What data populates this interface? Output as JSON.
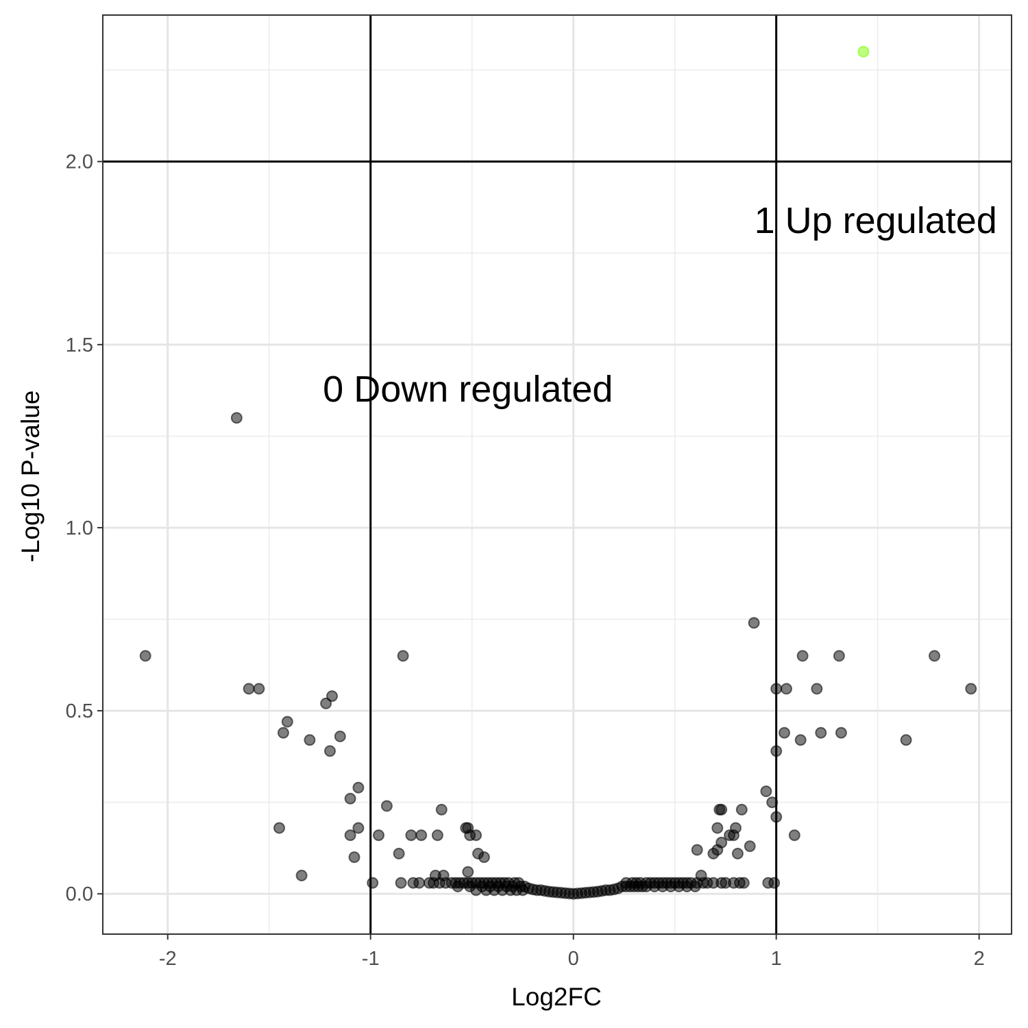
{
  "chart_data": {
    "type": "scatter",
    "xlabel": "Log2FC",
    "ylabel": "-Log10 P-value",
    "xlim": [
      -2.32,
      2.16
    ],
    "ylim": [
      -0.11,
      2.4
    ],
    "x_ticks": [
      -2,
      -1,
      0,
      1,
      2
    ],
    "x_tick_labels": [
      "-2",
      "-1",
      "0",
      "1",
      "2"
    ],
    "y_ticks": [
      0.0,
      0.5,
      1.0,
      1.5,
      2.0
    ],
    "y_tick_labels": [
      "0.0",
      "0.5",
      "1.0",
      "1.5",
      "2.0"
    ],
    "grid": true,
    "thresholds": {
      "log2fc": [
        -1,
        1
      ],
      "neg_log10_p": 2.0
    },
    "annotations": [
      {
        "text": "0 Down regulated",
        "x": -0.52,
        "y": 1.38
      },
      {
        "text": "1 Up regulated",
        "x": 1.49,
        "y": 1.84
      }
    ],
    "colors": {
      "not_significant": "#000000",
      "up": "#7cfc00",
      "threshold_line": "#000000"
    },
    "series": [
      {
        "group": "not_significant",
        "points": [
          [
            -2.11,
            0.65
          ],
          [
            -1.66,
            1.3
          ],
          [
            -1.6,
            0.56
          ],
          [
            -1.55,
            0.56
          ],
          [
            -1.45,
            0.18
          ],
          [
            -1.41,
            0.47
          ],
          [
            -1.43,
            0.44
          ],
          [
            -1.34,
            0.05
          ],
          [
            -1.3,
            0.42
          ],
          [
            -1.22,
            0.52
          ],
          [
            -1.19,
            0.54
          ],
          [
            -1.2,
            0.39
          ],
          [
            -1.15,
            0.43
          ],
          [
            -1.1,
            0.26
          ],
          [
            -1.06,
            0.29
          ],
          [
            -1.1,
            0.16
          ],
          [
            -1.08,
            0.1
          ],
          [
            -1.06,
            0.18
          ],
          [
            -0.99,
            0.03
          ],
          [
            -0.92,
            0.24
          ],
          [
            -0.96,
            0.16
          ],
          [
            -0.86,
            0.11
          ],
          [
            -0.85,
            0.03
          ],
          [
            -0.84,
            0.65
          ],
          [
            -0.8,
            0.16
          ],
          [
            -0.79,
            0.03
          ],
          [
            -0.75,
            0.16
          ],
          [
            -0.76,
            0.03
          ],
          [
            -0.67,
            0.16
          ],
          [
            -0.65,
            0.23
          ],
          [
            -0.53,
            0.18
          ],
          [
            -0.52,
            0.18
          ],
          [
            -0.51,
            0.16
          ],
          [
            -0.48,
            0.16
          ],
          [
            -0.47,
            0.11
          ],
          [
            -0.44,
            0.1
          ],
          [
            -0.52,
            0.06
          ],
          [
            -0.68,
            0.05
          ],
          [
            -0.64,
            0.05
          ],
          [
            -0.71,
            0.03
          ],
          [
            -0.69,
            0.03
          ],
          [
            -0.66,
            0.03
          ],
          [
            -0.63,
            0.03
          ],
          [
            -0.6,
            0.03
          ],
          [
            -0.58,
            0.03
          ],
          [
            -0.56,
            0.03
          ],
          [
            -0.54,
            0.03
          ],
          [
            -0.52,
            0.03
          ],
          [
            -0.5,
            0.03
          ],
          [
            -0.48,
            0.03
          ],
          [
            -0.46,
            0.03
          ],
          [
            -0.44,
            0.03
          ],
          [
            -0.42,
            0.03
          ],
          [
            -0.4,
            0.03
          ],
          [
            -0.38,
            0.03
          ],
          [
            -0.36,
            0.03
          ],
          [
            -0.34,
            0.03
          ],
          [
            -0.32,
            0.03
          ],
          [
            -0.29,
            0.03
          ],
          [
            -0.27,
            0.03
          ],
          [
            -0.57,
            0.02
          ],
          [
            -0.51,
            0.02
          ],
          [
            -0.45,
            0.02
          ],
          [
            -0.41,
            0.02
          ],
          [
            -0.37,
            0.02
          ],
          [
            -0.33,
            0.02
          ],
          [
            -0.3,
            0.02
          ],
          [
            -0.26,
            0.02
          ],
          [
            -0.24,
            0.02
          ],
          [
            -0.48,
            0.01
          ],
          [
            -0.43,
            0.01
          ],
          [
            -0.39,
            0.01
          ],
          [
            -0.35,
            0.01
          ],
          [
            -0.31,
            0.01
          ],
          [
            -0.28,
            0.01
          ],
          [
            -0.25,
            0.01
          ],
          [
            -0.22,
            0.015
          ],
          [
            -0.2,
            0.012
          ],
          [
            -0.18,
            0.01
          ],
          [
            -0.16,
            0.01
          ],
          [
            -0.14,
            0.008
          ],
          [
            -0.12,
            0.006
          ],
          [
            -0.1,
            0.005
          ],
          [
            -0.08,
            0.004
          ],
          [
            -0.06,
            0.003
          ],
          [
            -0.04,
            0.002
          ],
          [
            -0.02,
            0.001
          ],
          [
            0.0,
            0.0
          ],
          [
            0.02,
            0.001
          ],
          [
            0.04,
            0.002
          ],
          [
            0.06,
            0.003
          ],
          [
            0.08,
            0.004
          ],
          [
            0.1,
            0.005
          ],
          [
            0.12,
            0.006
          ],
          [
            0.14,
            0.008
          ],
          [
            0.16,
            0.01
          ],
          [
            0.18,
            0.01
          ],
          [
            0.2,
            0.012
          ],
          [
            0.22,
            0.015
          ],
          [
            0.24,
            0.02
          ],
          [
            0.26,
            0.02
          ],
          [
            0.28,
            0.02
          ],
          [
            0.3,
            0.02
          ],
          [
            0.32,
            0.02
          ],
          [
            0.34,
            0.02
          ],
          [
            0.36,
            0.02
          ],
          [
            0.4,
            0.02
          ],
          [
            0.44,
            0.02
          ],
          [
            0.48,
            0.02
          ],
          [
            0.52,
            0.02
          ],
          [
            0.56,
            0.02
          ],
          [
            0.6,
            0.02
          ],
          [
            0.26,
            0.03
          ],
          [
            0.29,
            0.03
          ],
          [
            0.31,
            0.03
          ],
          [
            0.33,
            0.03
          ],
          [
            0.36,
            0.03
          ],
          [
            0.38,
            0.03
          ],
          [
            0.4,
            0.03
          ],
          [
            0.42,
            0.03
          ],
          [
            0.44,
            0.03
          ],
          [
            0.46,
            0.03
          ],
          [
            0.48,
            0.03
          ],
          [
            0.5,
            0.03
          ],
          [
            0.52,
            0.03
          ],
          [
            0.54,
            0.03
          ],
          [
            0.56,
            0.03
          ],
          [
            0.58,
            0.03
          ],
          [
            0.61,
            0.03
          ],
          [
            0.64,
            0.03
          ],
          [
            0.66,
            0.03
          ],
          [
            0.69,
            0.03
          ],
          [
            0.73,
            0.03
          ],
          [
            0.75,
            0.03
          ],
          [
            0.79,
            0.03
          ],
          [
            0.82,
            0.03
          ],
          [
            0.84,
            0.03
          ],
          [
            0.63,
            0.05
          ],
          [
            0.61,
            0.12
          ],
          [
            0.69,
            0.11
          ],
          [
            0.71,
            0.12
          ],
          [
            0.73,
            0.14
          ],
          [
            0.71,
            0.18
          ],
          [
            0.72,
            0.23
          ],
          [
            0.73,
            0.23
          ],
          [
            0.77,
            0.16
          ],
          [
            0.79,
            0.16
          ],
          [
            0.8,
            0.18
          ],
          [
            0.81,
            0.11
          ],
          [
            0.83,
            0.23
          ],
          [
            0.87,
            0.13
          ],
          [
            0.89,
            0.74
          ],
          [
            0.95,
            0.28
          ],
          [
            0.96,
            0.03
          ],
          [
            0.99,
            0.03
          ],
          [
            0.98,
            0.25
          ],
          [
            1.0,
            0.21
          ],
          [
            1.0,
            0.39
          ],
          [
            1.0,
            0.56
          ],
          [
            1.05,
            0.56
          ],
          [
            1.04,
            0.44
          ],
          [
            1.09,
            0.16
          ],
          [
            1.12,
            0.42
          ],
          [
            1.13,
            0.65
          ],
          [
            1.2,
            0.56
          ],
          [
            1.22,
            0.44
          ],
          [
            1.31,
            0.65
          ],
          [
            1.32,
            0.44
          ],
          [
            1.64,
            0.42
          ],
          [
            1.78,
            0.65
          ],
          [
            1.96,
            0.56
          ]
        ]
      },
      {
        "group": "up",
        "points": [
          [
            1.43,
            2.3
          ]
        ]
      }
    ]
  }
}
